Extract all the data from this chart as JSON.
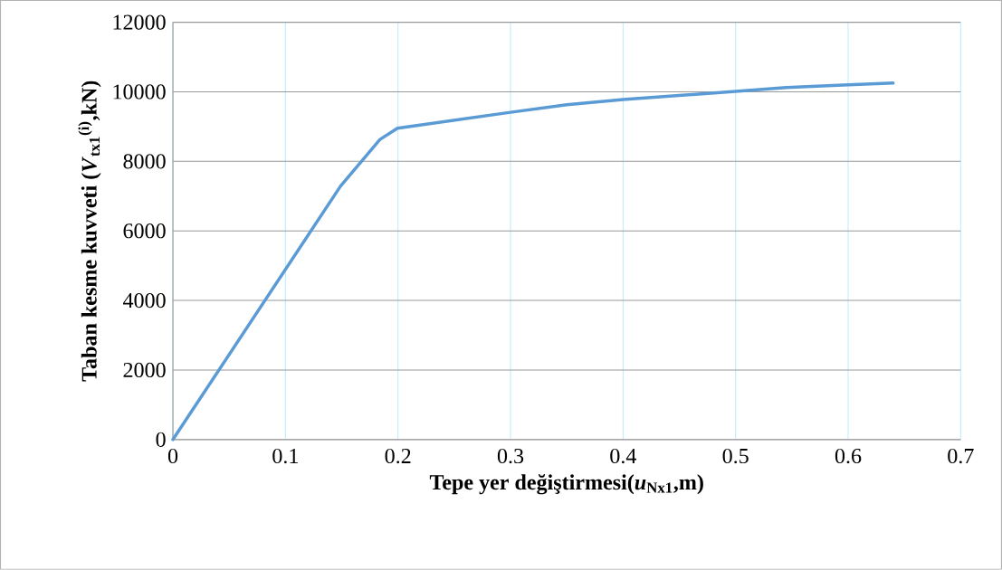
{
  "chart_data": {
    "type": "line",
    "xlabel": "Tepe yer değiştirmesi(*u*$_{Nx1}$,m)",
    "ylabel": "Taban kesme kuvveti (*V*$_{tx1}$$^{(i)}$,kN)",
    "series": [
      {
        "color": "#5b9bd5",
        "x": [
          0,
          0.149,
          0.184,
          0.1995,
          0.3,
          0.35,
          0.4,
          0.5,
          0.545,
          0.6,
          0.64
        ],
        "values": [
          0,
          7290,
          8630,
          8950,
          9410,
          9630,
          9780,
          10010,
          10120,
          10200,
          10250
        ]
      }
    ],
    "xlim": [
      0,
      0.7
    ],
    "xticks": [
      0,
      0.1,
      0.2,
      0.3,
      0.4,
      0.5,
      0.6,
      0.7
    ],
    "ylim": [
      0,
      12000
    ],
    "yticks": [
      0,
      2000,
      4000,
      6000,
      8000,
      10000,
      12000
    ],
    "grid": true,
    "marker": "none",
    "line_style": "solid"
  }
}
